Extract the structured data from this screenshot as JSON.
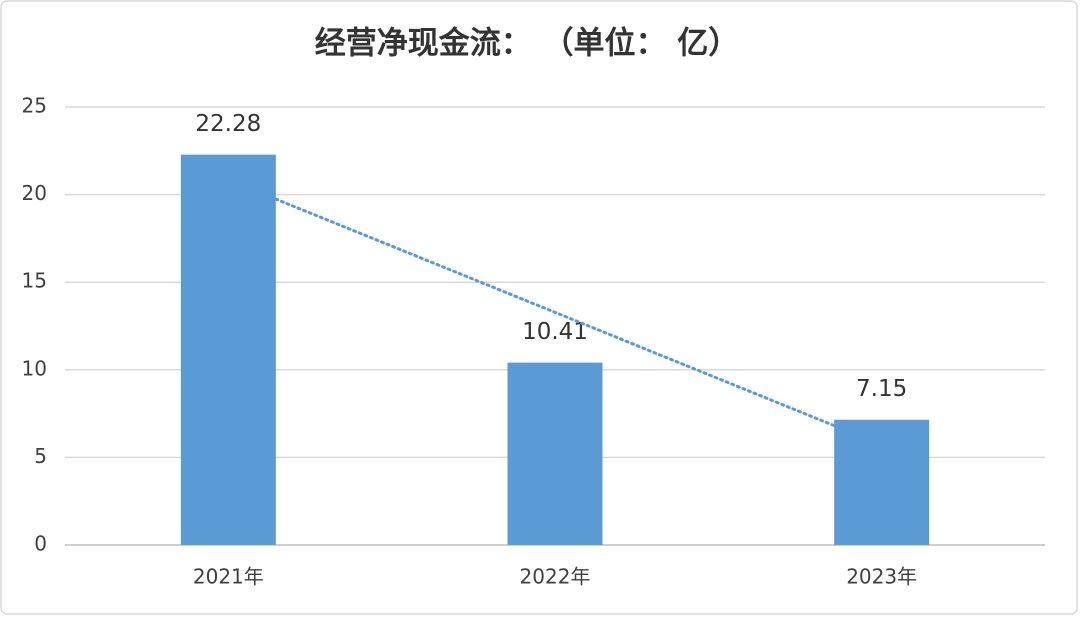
{
  "chart_data": {
    "type": "bar",
    "title": "经营净现金流： （单位： 亿）",
    "categories": [
      "2021年",
      "2022年",
      "2023年"
    ],
    "values": [
      22.28,
      10.41,
      7.15
    ],
    "color": "#5b9bd5",
    "ylim": [
      0,
      25
    ],
    "yticks": [
      0,
      5,
      10,
      15,
      20,
      25
    ],
    "grid": true,
    "trendline": "linear"
  }
}
